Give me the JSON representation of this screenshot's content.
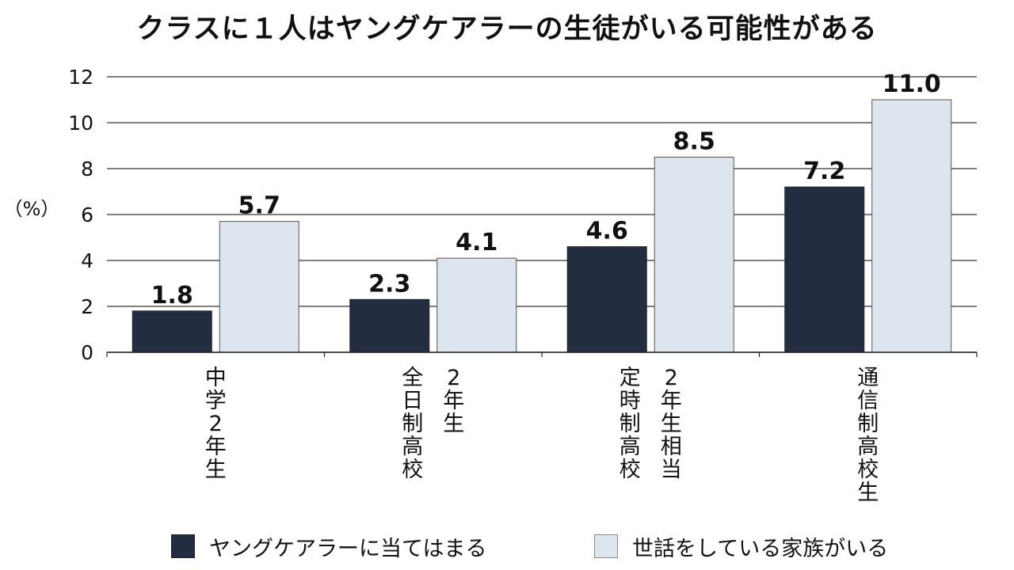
{
  "chart_data": {
    "type": "bar",
    "title": "クラスに１人はヤングケアラーの生徒がいる可能性がある",
    "ylabel": "（%）",
    "ylim": [
      0,
      12
    ],
    "yticks": [
      0,
      2,
      4,
      6,
      8,
      10,
      12
    ],
    "grid": true,
    "legend_position": "bottom",
    "categories": [
      [
        "中学2年生"
      ],
      [
        "2年生",
        "全日制高校"
      ],
      [
        "2年生相当",
        "定時制高校"
      ],
      [
        "通信制高校生"
      ]
    ],
    "series": [
      {
        "name": "ヤングケアラーに当てはまる",
        "values": [
          1.8,
          2.3,
          4.6,
          7.2
        ],
        "labels": [
          "1.8",
          "2.3",
          "4.6",
          "7.2"
        ],
        "color": "#222d40"
      },
      {
        "name": "世話をしている家族がいる",
        "values": [
          5.7,
          4.1,
          8.5,
          11.0
        ],
        "labels": [
          "5.7",
          "4.1",
          "8.5",
          "11.0"
        ],
        "color": "#dde6ef"
      }
    ]
  }
}
